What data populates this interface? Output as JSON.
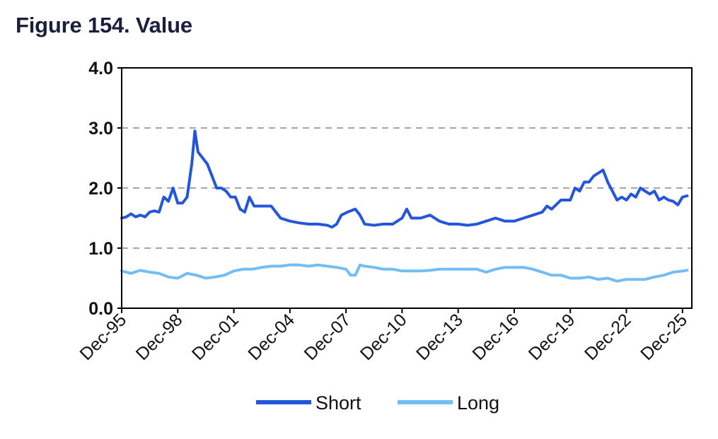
{
  "figure": {
    "title": "Figure 154. Value"
  },
  "chart_data": {
    "type": "line",
    "title": "Figure 154. Value",
    "xlabel": "",
    "ylabel": "",
    "x_range": [
      "1995-12",
      "2026-06"
    ],
    "ylim": [
      0,
      4
    ],
    "y_ticks": [
      "0.0",
      "1.0",
      "2.0",
      "3.0",
      "4.0"
    ],
    "y_tick_values": [
      0,
      1,
      2,
      3,
      4
    ],
    "x_ticks": [
      "Dec-95",
      "Dec-98",
      "Dec-01",
      "Dec-04",
      "Dec-07",
      "Dec-10",
      "Dec-13",
      "Dec-16",
      "Dec-19",
      "Dec-22",
      "Dec-25"
    ],
    "x_tick_values": [
      "1995-12",
      "1998-12",
      "2001-12",
      "2004-12",
      "2007-12",
      "2010-12",
      "2013-12",
      "2016-12",
      "2019-12",
      "2022-12",
      "2025-12"
    ],
    "grid": "horizontal dashed",
    "legend_position": "bottom",
    "colors": {
      "Short": "#2456d9",
      "Long": "#72bdf4",
      "grid": "#a6a6a6",
      "axis": "#000000"
    },
    "series": [
      {
        "name": "Short",
        "points": [
          [
            "1995-12",
            1.5
          ],
          [
            "1996-03",
            1.52
          ],
          [
            "1996-06",
            1.57
          ],
          [
            "1996-09",
            1.52
          ],
          [
            "1996-12",
            1.55
          ],
          [
            "1997-03",
            1.52
          ],
          [
            "1997-06",
            1.6
          ],
          [
            "1997-09",
            1.62
          ],
          [
            "1997-12",
            1.6
          ],
          [
            "1998-03",
            1.85
          ],
          [
            "1998-06",
            1.78
          ],
          [
            "1998-09",
            2.0
          ],
          [
            "1998-12",
            1.75
          ],
          [
            "1999-03",
            1.75
          ],
          [
            "1999-06",
            1.85
          ],
          [
            "1999-09",
            2.4
          ],
          [
            "1999-11",
            2.95
          ],
          [
            "2000-01",
            2.6
          ],
          [
            "2000-04",
            2.5
          ],
          [
            "2000-07",
            2.4
          ],
          [
            "2000-10",
            2.2
          ],
          [
            "2001-01",
            2.0
          ],
          [
            "2001-04",
            2.0
          ],
          [
            "2001-07",
            1.95
          ],
          [
            "2001-10",
            1.85
          ],
          [
            "2002-01",
            1.85
          ],
          [
            "2002-04",
            1.65
          ],
          [
            "2002-07",
            1.6
          ],
          [
            "2002-10",
            1.85
          ],
          [
            "2003-01",
            1.7
          ],
          [
            "2003-06",
            1.7
          ],
          [
            "2003-12",
            1.7
          ],
          [
            "2004-06",
            1.5
          ],
          [
            "2004-12",
            1.45
          ],
          [
            "2005-06",
            1.42
          ],
          [
            "2005-12",
            1.4
          ],
          [
            "2006-06",
            1.4
          ],
          [
            "2006-12",
            1.38
          ],
          [
            "2007-03",
            1.35
          ],
          [
            "2007-06",
            1.4
          ],
          [
            "2007-09",
            1.55
          ],
          [
            "2008-01",
            1.6
          ],
          [
            "2008-06",
            1.65
          ],
          [
            "2008-09",
            1.55
          ],
          [
            "2008-12",
            1.4
          ],
          [
            "2009-06",
            1.38
          ],
          [
            "2009-12",
            1.4
          ],
          [
            "2010-06",
            1.4
          ],
          [
            "2010-12",
            1.5
          ],
          [
            "2011-03",
            1.65
          ],
          [
            "2011-06",
            1.5
          ],
          [
            "2011-12",
            1.5
          ],
          [
            "2012-06",
            1.55
          ],
          [
            "2012-12",
            1.45
          ],
          [
            "2013-06",
            1.4
          ],
          [
            "2013-12",
            1.4
          ],
          [
            "2014-06",
            1.38
          ],
          [
            "2014-12",
            1.4
          ],
          [
            "2015-06",
            1.45
          ],
          [
            "2015-12",
            1.5
          ],
          [
            "2016-06",
            1.45
          ],
          [
            "2016-12",
            1.45
          ],
          [
            "2017-06",
            1.5
          ],
          [
            "2017-12",
            1.55
          ],
          [
            "2018-06",
            1.6
          ],
          [
            "2018-09",
            1.7
          ],
          [
            "2018-12",
            1.65
          ],
          [
            "2019-06",
            1.8
          ],
          [
            "2019-12",
            1.8
          ],
          [
            "2020-03",
            2.0
          ],
          [
            "2020-06",
            1.95
          ],
          [
            "2020-09",
            2.1
          ],
          [
            "2020-12",
            2.1
          ],
          [
            "2021-03",
            2.2
          ],
          [
            "2021-06",
            2.25
          ],
          [
            "2021-09",
            2.3
          ],
          [
            "2021-12",
            2.1
          ],
          [
            "2022-03",
            1.95
          ],
          [
            "2022-06",
            1.8
          ],
          [
            "2022-09",
            1.85
          ],
          [
            "2022-12",
            1.8
          ],
          [
            "2023-03",
            1.9
          ],
          [
            "2023-06",
            1.85
          ],
          [
            "2023-09",
            2.0
          ],
          [
            "2023-12",
            1.95
          ],
          [
            "2024-03",
            1.9
          ],
          [
            "2024-06",
            1.95
          ],
          [
            "2024-09",
            1.8
          ],
          [
            "2024-12",
            1.85
          ],
          [
            "2025-03",
            1.8
          ],
          [
            "2025-06",
            1.78
          ],
          [
            "2025-09",
            1.72
          ],
          [
            "2025-12",
            1.85
          ],
          [
            "2026-03",
            1.87
          ]
        ]
      },
      {
        "name": "Long",
        "points": [
          [
            "1995-12",
            0.62
          ],
          [
            "1996-06",
            0.58
          ],
          [
            "1996-12",
            0.63
          ],
          [
            "1997-06",
            0.6
          ],
          [
            "1997-12",
            0.58
          ],
          [
            "1998-06",
            0.52
          ],
          [
            "1998-12",
            0.5
          ],
          [
            "1999-06",
            0.58
          ],
          [
            "1999-12",
            0.55
          ],
          [
            "2000-06",
            0.5
          ],
          [
            "2000-12",
            0.52
          ],
          [
            "2001-06",
            0.55
          ],
          [
            "2001-12",
            0.62
          ],
          [
            "2002-06",
            0.65
          ],
          [
            "2002-12",
            0.65
          ],
          [
            "2003-06",
            0.68
          ],
          [
            "2003-12",
            0.7
          ],
          [
            "2004-06",
            0.7
          ],
          [
            "2004-12",
            0.72
          ],
          [
            "2005-06",
            0.72
          ],
          [
            "2005-12",
            0.7
          ],
          [
            "2006-06",
            0.72
          ],
          [
            "2006-12",
            0.7
          ],
          [
            "2007-06",
            0.68
          ],
          [
            "2007-12",
            0.65
          ],
          [
            "2008-03",
            0.55
          ],
          [
            "2008-06",
            0.55
          ],
          [
            "2008-09",
            0.72
          ],
          [
            "2008-12",
            0.7
          ],
          [
            "2009-06",
            0.68
          ],
          [
            "2009-12",
            0.65
          ],
          [
            "2010-06",
            0.65
          ],
          [
            "2010-12",
            0.62
          ],
          [
            "2011-06",
            0.62
          ],
          [
            "2011-12",
            0.62
          ],
          [
            "2012-06",
            0.63
          ],
          [
            "2012-12",
            0.65
          ],
          [
            "2013-06",
            0.65
          ],
          [
            "2013-12",
            0.65
          ],
          [
            "2014-06",
            0.65
          ],
          [
            "2014-12",
            0.65
          ],
          [
            "2015-06",
            0.6
          ],
          [
            "2015-12",
            0.65
          ],
          [
            "2016-06",
            0.68
          ],
          [
            "2016-12",
            0.68
          ],
          [
            "2017-06",
            0.68
          ],
          [
            "2017-12",
            0.65
          ],
          [
            "2018-06",
            0.6
          ],
          [
            "2018-12",
            0.55
          ],
          [
            "2019-06",
            0.55
          ],
          [
            "2019-12",
            0.5
          ],
          [
            "2020-06",
            0.5
          ],
          [
            "2020-12",
            0.52
          ],
          [
            "2021-06",
            0.48
          ],
          [
            "2021-12",
            0.5
          ],
          [
            "2022-06",
            0.45
          ],
          [
            "2022-12",
            0.48
          ],
          [
            "2023-06",
            0.48
          ],
          [
            "2023-12",
            0.48
          ],
          [
            "2024-06",
            0.52
          ],
          [
            "2024-12",
            0.55
          ],
          [
            "2025-06",
            0.6
          ],
          [
            "2025-12",
            0.62
          ],
          [
            "2026-03",
            0.63
          ]
        ]
      }
    ]
  }
}
